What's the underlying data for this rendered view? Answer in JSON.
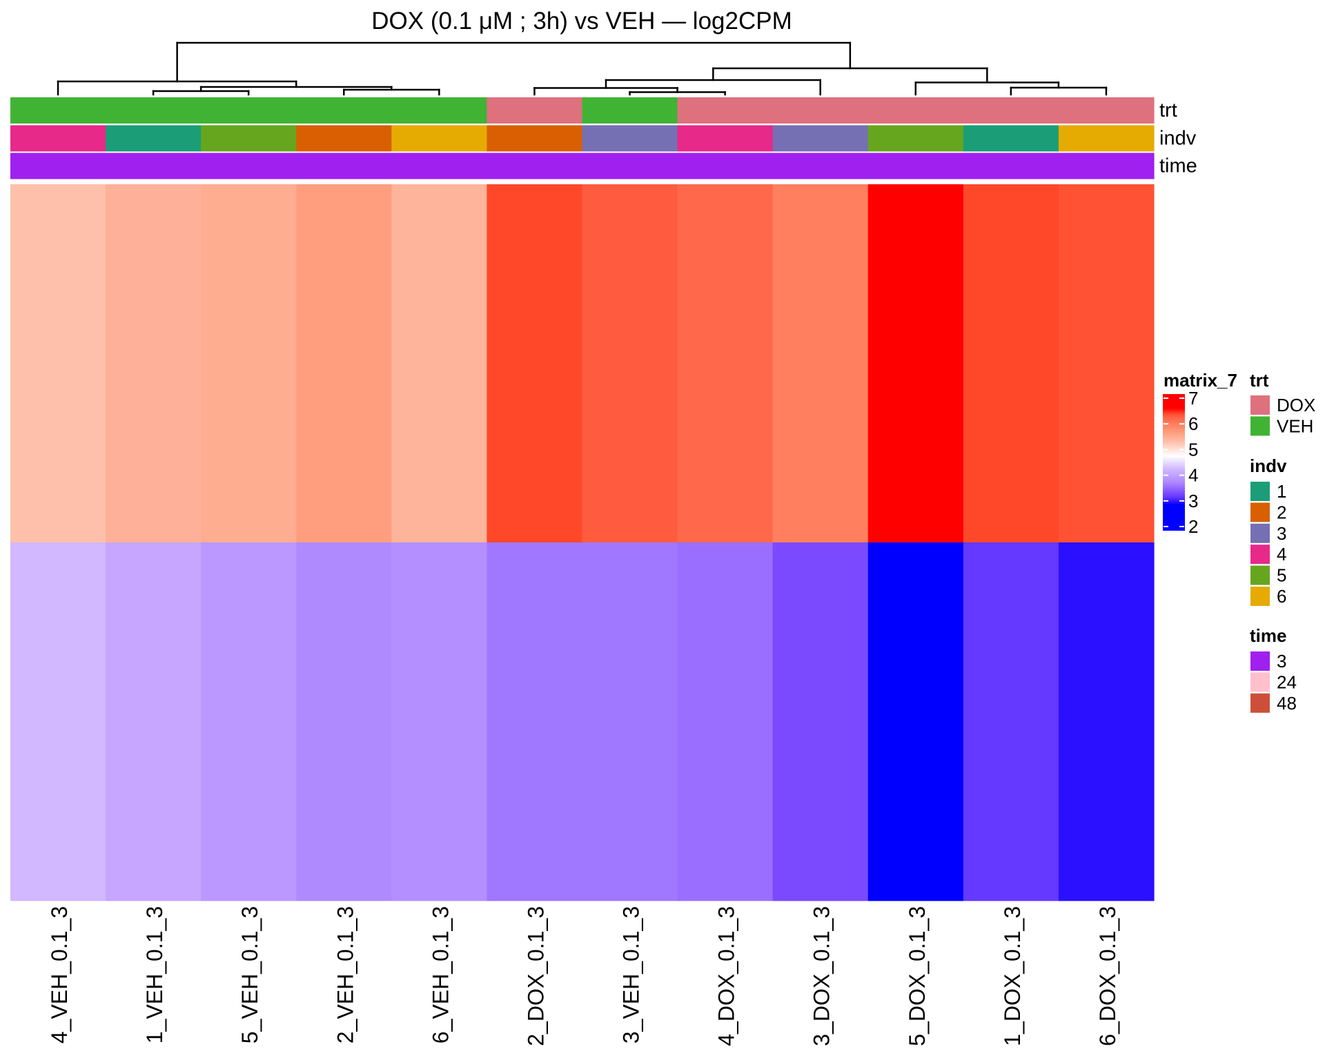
{
  "chart_data": {
    "type": "heatmap",
    "title": "DOX (0.1 μM ; 3h) vs VEH — log2CPM",
    "columns": [
      "4_VEH_0.1_3",
      "1_VEH_0.1_3",
      "5_VEH_0.1_3",
      "2_VEH_0.1_3",
      "6_VEH_0.1_3",
      "2_DOX_0.1_3",
      "3_VEH_0.1_3",
      "4_DOX_0.1_3",
      "3_DOX_0.1_3",
      "5_DOX_0.1_3",
      "1_DOX_0.1_3",
      "6_DOX_0.1_3"
    ],
    "rows": [
      {
        "values": [
          5.3,
          5.45,
          5.5,
          5.65,
          5.42,
          6.4,
          6.3,
          6.2,
          6.0,
          7.0,
          6.4,
          6.35
        ]
      },
      {
        "values": [
          4.25,
          4.05,
          3.9,
          3.75,
          3.8,
          3.6,
          3.6,
          3.55,
          3.3,
          2.0,
          3.15,
          2.95
        ]
      }
    ],
    "color_scale": {
      "name": "matrix_7",
      "range": [
        2,
        7
      ],
      "ticks": [
        7,
        6,
        5,
        4,
        3,
        2
      ],
      "stops": [
        [
          2.85,
          "#0000FF"
        ],
        [
          2.95,
          "#2B0FFF"
        ],
        [
          3.15,
          "#6539FF"
        ],
        [
          3.3,
          "#7B4AFF"
        ],
        [
          3.6,
          "#A077FF"
        ],
        [
          3.75,
          "#AF8AFF"
        ],
        [
          4.05,
          "#C6A6FF"
        ],
        [
          4.25,
          "#D1B8FF"
        ],
        [
          4.75,
          "#FFFFFF"
        ],
        [
          5.3,
          "#FEC0AA"
        ],
        [
          5.65,
          "#FE9E7F"
        ],
        [
          6.0,
          "#FF7F5F"
        ],
        [
          6.3,
          "#FF5C3F"
        ],
        [
          6.4,
          "#FF482A"
        ],
        [
          6.6,
          "#FF0000"
        ]
      ]
    },
    "annotations": [
      {
        "name": "trt",
        "levels": [
          "DOX",
          "VEH"
        ],
        "colors": [
          "#DF707E",
          "#40B334"
        ],
        "values": [
          1,
          1,
          1,
          1,
          1,
          0,
          1,
          0,
          0,
          0,
          0,
          0
        ]
      },
      {
        "name": "indv",
        "levels": [
          "1",
          "2",
          "3",
          "4",
          "5",
          "6"
        ],
        "colors": [
          "#1B9E77",
          "#D95F02",
          "#7570B3",
          "#E7298A",
          "#66A61E",
          "#E6AB02"
        ],
        "values": [
          3,
          0,
          4,
          1,
          5,
          1,
          2,
          3,
          2,
          4,
          0,
          5
        ]
      },
      {
        "name": "time",
        "levels": [
          "3",
          "24",
          "48"
        ],
        "colors": [
          "#A020F0",
          "#FFC0CB",
          "#CD4F39"
        ],
        "values": [
          0,
          0,
          0,
          0,
          0,
          0,
          0,
          0,
          0,
          0,
          0,
          0
        ]
      }
    ],
    "column_dendrogram": {
      "merge_height": 1.0,
      "children": [
        {
          "merge_height": 0.253,
          "children": [
            {
              "leaf": 0
            },
            {
              "merge_height": 0.147,
              "children": [
                {
                  "merge_height": 0.067,
                  "children": [
                    {
                      "leaf": 1
                    },
                    {
                      "leaf": 2
                    }
                  ]
                },
                {
                  "merge_height": 0.093,
                  "children": [
                    {
                      "leaf": 3
                    },
                    {
                      "leaf": 4
                    }
                  ]
                }
              ]
            }
          ]
        },
        {
          "merge_height": 0.507,
          "children": [
            {
              "merge_height": 0.28,
              "children": [
                {
                  "merge_height": 0.127,
                  "children": [
                    {
                      "leaf": 5
                    },
                    {
                      "merge_height": 0.047,
                      "children": [
                        {
                          "leaf": 6
                        },
                        {
                          "leaf": 7
                        }
                      ]
                    }
                  ]
                },
                {
                  "leaf": 8
                }
              ]
            },
            {
              "merge_height": 0.233,
              "children": [
                {
                  "leaf": 9
                },
                {
                  "merge_height": 0.133,
                  "children": [
                    {
                      "leaf": 10
                    },
                    {
                      "leaf": 11
                    }
                  ]
                }
              ]
            }
          ]
        }
      ]
    },
    "legend_placement": "right"
  }
}
